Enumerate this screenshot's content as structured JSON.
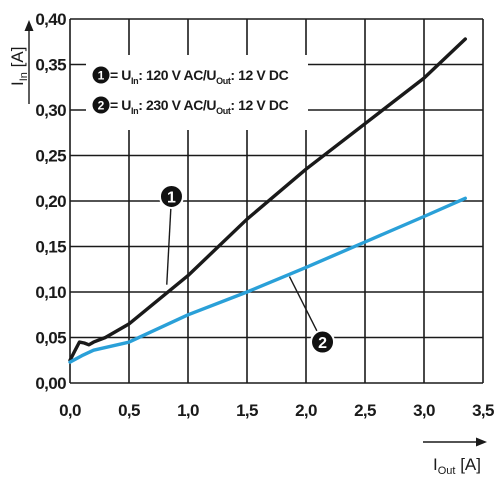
{
  "chart_data": {
    "type": "line",
    "xlabel": {
      "main": "I",
      "sub": "Out",
      "unit": " [A]"
    },
    "ylabel": {
      "main": "I",
      "sub": "In",
      "unit": " [A]"
    },
    "xlim": [
      0,
      3.5
    ],
    "ylim": [
      0,
      0.4
    ],
    "xticks": [
      "0,0",
      "0,5",
      "1,0",
      "1,5",
      "2,0",
      "2,5",
      "3,0",
      "3,5"
    ],
    "yticks": [
      "0,00",
      "0,05",
      "0,10",
      "0,15",
      "0,20",
      "0,25",
      "0,30",
      "0,35",
      "0,40"
    ],
    "grid": true,
    "legend": [
      {
        "marker": "1",
        "prefix": " = U",
        "sub1": "In",
        "mid": ": 120 V AC/U",
        "sub2": "Out",
        "suffix": ": 12 V DC"
      },
      {
        "marker": "2",
        "prefix": " = U",
        "sub1": "In",
        "mid": ": 230 V AC/U",
        "sub2": "Out",
        "suffix": ": 12 V DC"
      }
    ],
    "series": [
      {
        "marker": "1",
        "color": "#1a1a1a",
        "x": [
          0.0,
          0.04,
          0.08,
          0.12,
          0.16,
          0.2,
          0.3,
          0.5,
          1.0,
          1.5,
          2.0,
          2.5,
          3.0,
          3.35
        ],
        "y": [
          0.025,
          0.035,
          0.045,
          0.044,
          0.042,
          0.045,
          0.05,
          0.065,
          0.118,
          0.18,
          0.235,
          0.285,
          0.335,
          0.378
        ]
      },
      {
        "marker": "2",
        "color": "#2aa0d8",
        "x": [
          0.0,
          0.1,
          0.2,
          0.5,
          1.0,
          1.5,
          2.0,
          2.5,
          3.0,
          3.35
        ],
        "y": [
          0.023,
          0.03,
          0.036,
          0.045,
          0.075,
          0.1,
          0.127,
          0.155,
          0.183,
          0.203
        ]
      }
    ],
    "annotations": [
      {
        "label": "1",
        "at_x": 0.82,
        "at_y": 0.108,
        "badge_x": 0.86,
        "badge_y": 0.205
      },
      {
        "label": "2",
        "at_x": 1.86,
        "at_y": 0.117,
        "badge_x": 2.14,
        "badge_y": 0.045
      }
    ]
  }
}
